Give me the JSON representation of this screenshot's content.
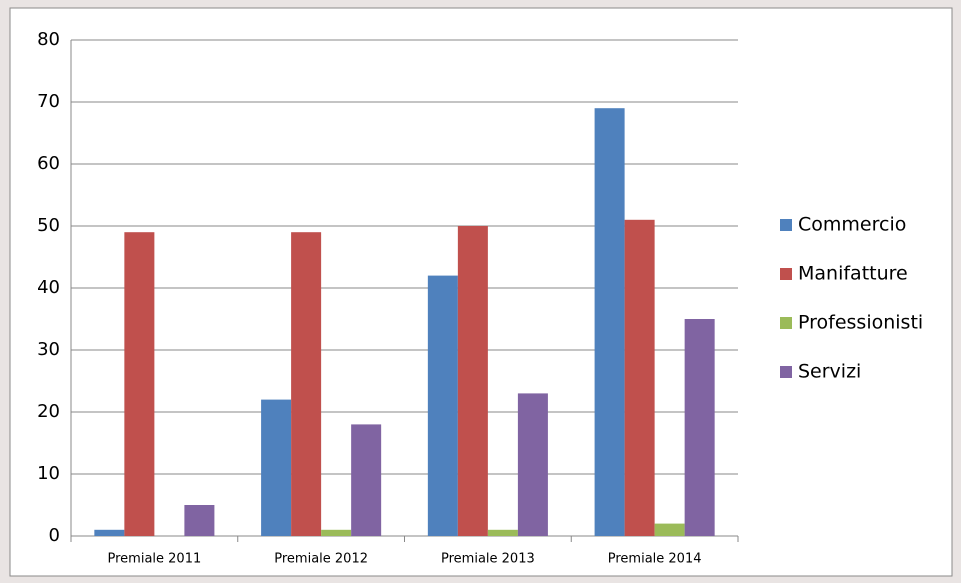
{
  "chart_data": {
    "type": "bar",
    "categories": [
      "Premiale 2011",
      "Premiale 2012",
      "Premiale 2013",
      "Premiale 2014"
    ],
    "series": [
      {
        "name": "Commercio",
        "color": "#4f81bd",
        "values": [
          1,
          22,
          42,
          69
        ]
      },
      {
        "name": "Manifatture",
        "color": "#c0504d",
        "values": [
          49,
          49,
          50,
          51
        ]
      },
      {
        "name": "Professionisti",
        "color": "#9bbb59",
        "values": [
          0,
          1,
          1,
          2
        ]
      },
      {
        "name": "Servizi",
        "color": "#8064a2",
        "values": [
          5,
          18,
          23,
          35
        ]
      }
    ],
    "ylim": [
      0,
      80
    ],
    "yticks": [
      0,
      10,
      20,
      30,
      40,
      50,
      60,
      70,
      80
    ],
    "grid": true,
    "legend": "right"
  }
}
